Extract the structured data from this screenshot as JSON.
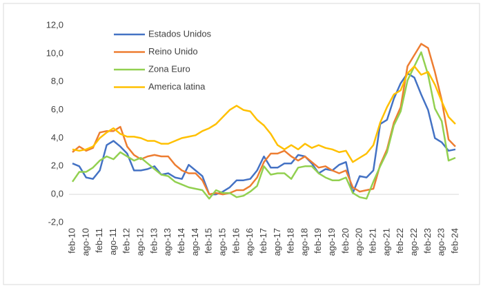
{
  "chart_data": {
    "type": "line",
    "categories": [
      "feb-10",
      null,
      "ago-10",
      null,
      "feb-11",
      null,
      "ago-11",
      null,
      "feb-12",
      null,
      "ago-12",
      null,
      "feb-13",
      null,
      "ago-13",
      null,
      "feb-14",
      null,
      "ago-14",
      null,
      "feb-15",
      null,
      "ago-15",
      null,
      "feb-16",
      null,
      "ago-16",
      null,
      "feb-17",
      null,
      "ago-17",
      null,
      "feb-18",
      null,
      "ago-18",
      null,
      "feb-19",
      null,
      "ago-19",
      null,
      "feb-20",
      null,
      "ago-20",
      null,
      "feb-21",
      null,
      "ago-21",
      null,
      "feb-22",
      null,
      "ago-22",
      null,
      "feb-23",
      null,
      "ago-23",
      null,
      "feb-24"
    ],
    "series": [
      {
        "name": "Estados Unidos",
        "color": "#4472c4",
        "values": [
          2.2,
          2.0,
          1.2,
          1.1,
          1.7,
          3.5,
          3.8,
          3.4,
          2.9,
          1.7,
          1.7,
          1.8,
          2.0,
          1.4,
          1.5,
          1.2,
          1.1,
          2.1,
          1.7,
          1.3,
          0.0,
          0.0,
          0.2,
          0.5,
          1.0,
          1.0,
          1.1,
          1.7,
          2.7,
          1.9,
          1.9,
          2.2,
          2.2,
          2.8,
          2.7,
          2.2,
          1.5,
          1.8,
          1.7,
          2.1,
          2.3,
          0.1,
          1.3,
          1.2,
          1.7,
          5.0,
          5.3,
          6.8,
          7.9,
          8.6,
          8.3,
          7.1,
          6.0,
          4.0,
          3.7,
          3.1,
          3.2
        ]
      },
      {
        "name": "Reino Unido",
        "color": "#ed7d31",
        "values": [
          3.0,
          3.4,
          3.1,
          3.3,
          4.4,
          4.5,
          4.5,
          4.8,
          3.4,
          2.8,
          2.5,
          2.7,
          2.8,
          2.7,
          2.7,
          2.1,
          1.7,
          1.5,
          1.5,
          1.0,
          0.0,
          0.1,
          0.0,
          0.1,
          0.3,
          0.3,
          0.6,
          1.2,
          2.3,
          2.9,
          2.9,
          3.1,
          2.7,
          2.4,
          2.7,
          2.3,
          1.9,
          2.0,
          1.7,
          1.5,
          1.7,
          0.5,
          0.2,
          0.3,
          0.4,
          2.1,
          3.2,
          5.1,
          6.2,
          9.1,
          9.9,
          10.7,
          10.4,
          8.7,
          6.7,
          3.9,
          3.4
        ]
      },
      {
        "name": "Zona Euro",
        "color": "#92d050",
        "values": [
          0.9,
          1.6,
          1.6,
          1.9,
          2.4,
          2.7,
          2.5,
          3.0,
          2.7,
          2.4,
          2.6,
          2.2,
          1.8,
          1.4,
          1.3,
          0.9,
          0.7,
          0.5,
          0.4,
          0.3,
          -0.3,
          0.3,
          0.1,
          0.1,
          -0.2,
          -0.1,
          0.2,
          0.6,
          2.0,
          1.4,
          1.5,
          1.5,
          1.1,
          1.9,
          2.0,
          2.0,
          1.5,
          1.2,
          1.0,
          1.0,
          1.2,
          0.1,
          -0.2,
          -0.3,
          0.9,
          2.0,
          3.0,
          4.9,
          5.9,
          8.1,
          9.1,
          10.1,
          8.5,
          6.1,
          5.2,
          2.4,
          2.6
        ]
      },
      {
        "name": "America latina",
        "color": "#ffc000",
        "values": [
          3.2,
          3.1,
          3.2,
          3.4,
          4.0,
          4.4,
          4.7,
          4.3,
          4.1,
          4.1,
          4.0,
          3.8,
          3.8,
          3.6,
          3.6,
          3.8,
          4.0,
          4.1,
          4.2,
          4.5,
          4.7,
          5.0,
          5.5,
          6.0,
          6.3,
          6.0,
          5.9,
          5.3,
          4.9,
          4.3,
          3.5,
          3.2,
          3.5,
          3.2,
          3.6,
          3.3,
          3.5,
          3.3,
          3.2,
          3.0,
          3.1,
          2.3,
          2.6,
          2.9,
          3.5,
          5.1,
          6.2,
          7.1,
          7.4,
          8.6,
          9.1,
          8.5,
          8.7,
          7.8,
          6.6,
          5.5,
          5.0
        ]
      }
    ],
    "ylim": [
      -2,
      12
    ],
    "yticks": [
      {
        "value": -2,
        "label": "-2,0"
      },
      {
        "value": 0,
        "label": "0,0"
      },
      {
        "value": 2,
        "label": "2,0"
      },
      {
        "value": 4,
        "label": "4,0"
      },
      {
        "value": 6,
        "label": "6,0"
      },
      {
        "value": 8,
        "label": "8,0"
      },
      {
        "value": 10,
        "label": "10,0"
      },
      {
        "value": 12,
        "label": "12,0"
      }
    ],
    "grid": false
  }
}
